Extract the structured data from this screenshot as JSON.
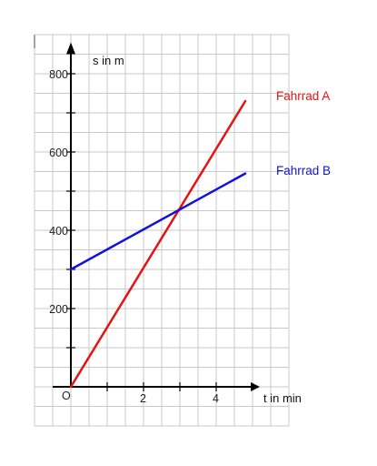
{
  "chart_data": {
    "type": "line",
    "xlabel": "t in min",
    "ylabel": "s in m",
    "origin_label": "O",
    "xlim": [
      -1,
      6
    ],
    "ylim": [
      -100,
      900
    ],
    "x_ticks": [
      2,
      4
    ],
    "x_tick_labels": [
      "2",
      "4"
    ],
    "y_ticks": [
      200,
      400,
      600,
      800
    ],
    "y_tick_labels": [
      "200",
      "400",
      "600",
      "800"
    ],
    "grid": true,
    "grid_step": {
      "x": 0.5,
      "y": 50
    },
    "series": [
      {
        "name": "Fahrrad A",
        "color": "#e81010",
        "x": [
          0,
          4.8
        ],
        "y": [
          0,
          730
        ]
      },
      {
        "name": "Fahrrad B",
        "color": "#1010e0",
        "x": [
          0,
          4.8
        ],
        "y": [
          300,
          545
        ]
      }
    ],
    "colors": {
      "grid": "#c8c8c8",
      "axis": "#000000",
      "background": "#ffffff"
    }
  }
}
